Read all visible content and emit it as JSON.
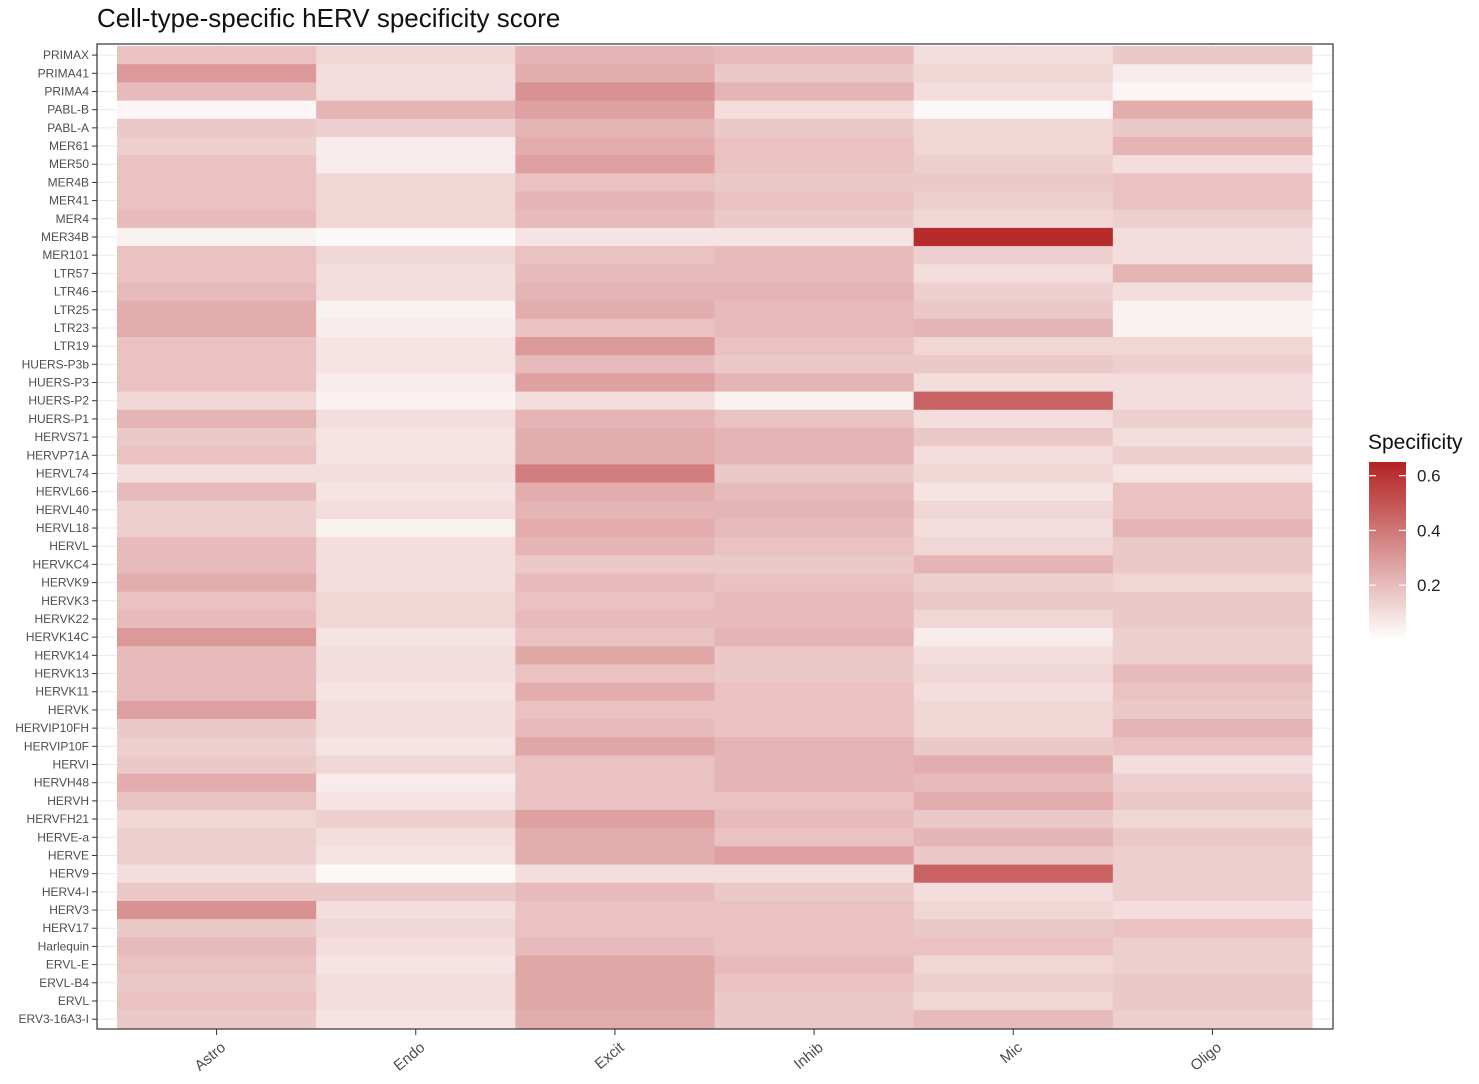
{
  "chart_data": {
    "type": "heatmap",
    "title": "Cell-type-specific hERV specificity score",
    "xlabel": "",
    "ylabel": "",
    "x_categories": [
      "Astro",
      "Endo",
      "Excit",
      "Inhib",
      "Mic",
      "Oligo"
    ],
    "y_categories": [
      "PRIMAX",
      "PRIMA41",
      "PRIMA4",
      "PABL-B",
      "PABL-A",
      "MER61",
      "MER50",
      "MER4B",
      "MER41",
      "MER4",
      "MER34B",
      "MER101",
      "LTR57",
      "LTR46",
      "LTR25",
      "LTR23",
      "LTR19",
      "HUERS-P3b",
      "HUERS-P3",
      "HUERS-P2",
      "HUERS-P1",
      "HERVS71",
      "HERVP71A",
      "HERVL74",
      "HERVL66",
      "HERVL40",
      "HERVL18",
      "HERVL",
      "HERVKC4",
      "HERVK9",
      "HERVK3",
      "HERVK22",
      "HERVK14C",
      "HERVK14",
      "HERVK13",
      "HERVK11",
      "HERVK",
      "HERVIP10FH",
      "HERVIP10F",
      "HERVI",
      "HERVH48",
      "HERVH",
      "HERVFH21",
      "HERVE-a",
      "HERVE",
      "HERV9",
      "HERV4-I",
      "HERV3",
      "HERV17",
      "Harlequin",
      "ERVL-E",
      "ERVL-B4",
      "ERVL",
      "ERV3-16A3-I"
    ],
    "values": [
      [
        0.18,
        0.12,
        0.22,
        0.2,
        0.1,
        0.16
      ],
      [
        0.3,
        0.1,
        0.24,
        0.16,
        0.12,
        0.06
      ],
      [
        0.2,
        0.1,
        0.32,
        0.22,
        0.1,
        0.03
      ],
      [
        0.03,
        0.22,
        0.28,
        0.1,
        0.02,
        0.24
      ],
      [
        0.16,
        0.14,
        0.22,
        0.16,
        0.12,
        0.16
      ],
      [
        0.14,
        0.06,
        0.24,
        0.18,
        0.12,
        0.22
      ],
      [
        0.18,
        0.06,
        0.28,
        0.18,
        0.14,
        0.1
      ],
      [
        0.18,
        0.12,
        0.18,
        0.16,
        0.16,
        0.18
      ],
      [
        0.18,
        0.12,
        0.22,
        0.18,
        0.14,
        0.18
      ],
      [
        0.2,
        0.12,
        0.2,
        0.16,
        0.12,
        0.14
      ],
      [
        0.04,
        0.02,
        0.08,
        0.08,
        0.62,
        0.1
      ],
      [
        0.18,
        0.12,
        0.18,
        0.2,
        0.14,
        0.1
      ],
      [
        0.18,
        0.1,
        0.2,
        0.2,
        0.1,
        0.22
      ],
      [
        0.2,
        0.1,
        0.22,
        0.22,
        0.14,
        0.1
      ],
      [
        0.24,
        0.04,
        0.24,
        0.2,
        0.16,
        0.04
      ],
      [
        0.24,
        0.06,
        0.18,
        0.2,
        0.22,
        0.04
      ],
      [
        0.18,
        0.08,
        0.3,
        0.18,
        0.12,
        0.12
      ],
      [
        0.18,
        0.08,
        0.2,
        0.16,
        0.16,
        0.14
      ],
      [
        0.18,
        0.06,
        0.28,
        0.22,
        0.1,
        0.1
      ],
      [
        0.12,
        0.04,
        0.1,
        0.04,
        0.46,
        0.1
      ],
      [
        0.22,
        0.1,
        0.22,
        0.18,
        0.1,
        0.14
      ],
      [
        0.16,
        0.08,
        0.24,
        0.22,
        0.16,
        0.1
      ],
      [
        0.18,
        0.08,
        0.24,
        0.22,
        0.1,
        0.14
      ],
      [
        0.1,
        0.1,
        0.38,
        0.16,
        0.12,
        0.08
      ],
      [
        0.2,
        0.08,
        0.24,
        0.2,
        0.08,
        0.18
      ],
      [
        0.14,
        0.1,
        0.22,
        0.22,
        0.12,
        0.18
      ],
      [
        0.14,
        0.04,
        0.24,
        0.2,
        0.1,
        0.22
      ],
      [
        0.2,
        0.1,
        0.22,
        0.18,
        0.12,
        0.16
      ],
      [
        0.2,
        0.1,
        0.16,
        0.16,
        0.22,
        0.16
      ],
      [
        0.24,
        0.1,
        0.2,
        0.18,
        0.14,
        0.12
      ],
      [
        0.18,
        0.12,
        0.18,
        0.2,
        0.16,
        0.16
      ],
      [
        0.2,
        0.12,
        0.2,
        0.2,
        0.12,
        0.16
      ],
      [
        0.3,
        0.08,
        0.18,
        0.22,
        0.06,
        0.14
      ],
      [
        0.2,
        0.1,
        0.26,
        0.16,
        0.1,
        0.14
      ],
      [
        0.2,
        0.1,
        0.18,
        0.16,
        0.12,
        0.2
      ],
      [
        0.2,
        0.08,
        0.24,
        0.18,
        0.1,
        0.18
      ],
      [
        0.28,
        0.1,
        0.18,
        0.18,
        0.12,
        0.16
      ],
      [
        0.16,
        0.1,
        0.2,
        0.18,
        0.12,
        0.22
      ],
      [
        0.14,
        0.08,
        0.26,
        0.22,
        0.16,
        0.18
      ],
      [
        0.16,
        0.12,
        0.18,
        0.22,
        0.24,
        0.1
      ],
      [
        0.24,
        0.06,
        0.18,
        0.22,
        0.2,
        0.14
      ],
      [
        0.18,
        0.08,
        0.18,
        0.18,
        0.24,
        0.16
      ],
      [
        0.12,
        0.14,
        0.28,
        0.2,
        0.16,
        0.12
      ],
      [
        0.14,
        0.1,
        0.24,
        0.18,
        0.22,
        0.16
      ],
      [
        0.14,
        0.08,
        0.24,
        0.28,
        0.16,
        0.14
      ],
      [
        0.1,
        0.02,
        0.1,
        0.1,
        0.46,
        0.14
      ],
      [
        0.16,
        0.16,
        0.2,
        0.16,
        0.1,
        0.14
      ],
      [
        0.32,
        0.1,
        0.18,
        0.18,
        0.12,
        0.1
      ],
      [
        0.16,
        0.12,
        0.18,
        0.18,
        0.16,
        0.18
      ],
      [
        0.2,
        0.1,
        0.2,
        0.18,
        0.18,
        0.14
      ],
      [
        0.18,
        0.08,
        0.26,
        0.2,
        0.12,
        0.14
      ],
      [
        0.16,
        0.1,
        0.26,
        0.18,
        0.14,
        0.16
      ],
      [
        0.18,
        0.1,
        0.26,
        0.16,
        0.12,
        0.16
      ],
      [
        0.16,
        0.08,
        0.24,
        0.16,
        0.2,
        0.14
      ]
    ],
    "legend": {
      "title": "Specificity",
      "ticks": [
        0.2,
        0.4,
        0.6
      ],
      "tick_labels": [
        "0.2",
        "0.4",
        "0.6"
      ],
      "range": [
        0.0,
        0.65
      ],
      "low_color": "#ffffff",
      "high_color": "#b22222"
    }
  }
}
